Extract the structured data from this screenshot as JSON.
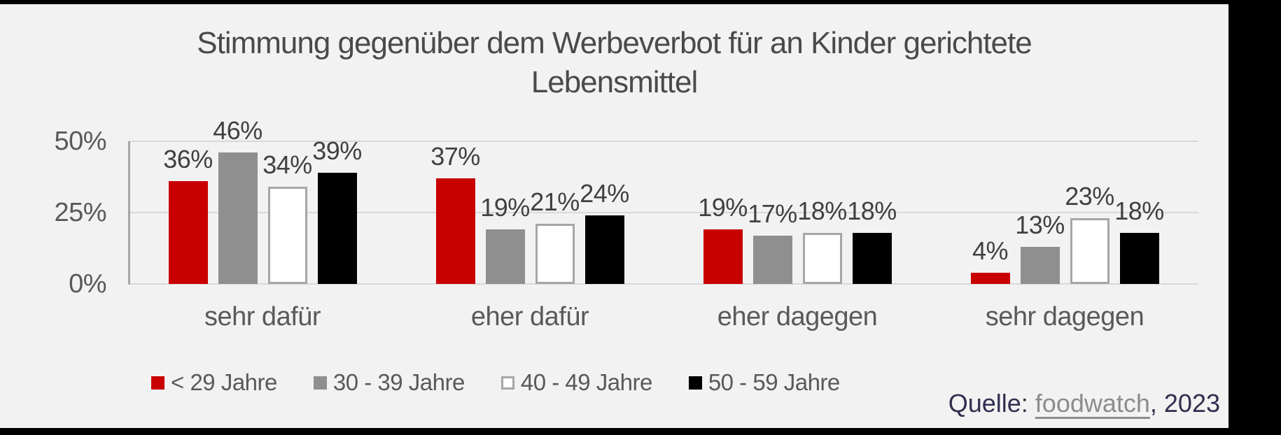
{
  "frame": {
    "border_color": "#000000",
    "content_background": "#F2F2F2"
  },
  "title": {
    "text": "Stimmung gegenüber dem Werbeverbot für an Kinder gerichtete Lebensmittel"
  },
  "chart_data": {
    "type": "bar",
    "title": "Stimmung gegenüber dem Werbeverbot für an Kinder gerichtete Lebensmittel",
    "categories": [
      "sehr dafür",
      "eher dafür",
      "eher dagegen",
      "sehr dagegen"
    ],
    "series": [
      {
        "name": "< 29 Jahre",
        "color": "#C80000",
        "border": null,
        "values": [
          36,
          37,
          19,
          4
        ]
      },
      {
        "name": "30 - 39 Jahre",
        "color": "#8F8F8F",
        "border": null,
        "values": [
          46,
          19,
          17,
          13
        ]
      },
      {
        "name": "40 - 49 Jahre",
        "color": "#FFFFFF",
        "border": "#A6A6A6",
        "values": [
          34,
          21,
          18,
          23
        ]
      },
      {
        "name": "50 - 59 Jahre",
        "color": "#000000",
        "border": null,
        "values": [
          39,
          24,
          18,
          18
        ]
      }
    ],
    "data_label_suffix": "%",
    "ylim": [
      0,
      50
    ],
    "yticks": [
      {
        "label": "50%",
        "value": 50
      },
      {
        "label": "25%",
        "value": 25
      },
      {
        "label": "0%",
        "value": 0
      }
    ],
    "grid": true,
    "legend_position": "bottom",
    "colors": {
      "gridline": "#D9D9D9",
      "axis_line": "#A6A6A6",
      "title_text": "#4A4A4A",
      "value_label_text": "#404040",
      "category_text": "#595959",
      "tick_text": "#595959",
      "legend_text": "#595959"
    }
  },
  "source": {
    "prefix": "Quelle: ",
    "link": "foodwatch",
    "suffix": ", 2023",
    "text_color": "#302F4F",
    "link_color": "#8C8C8C"
  }
}
